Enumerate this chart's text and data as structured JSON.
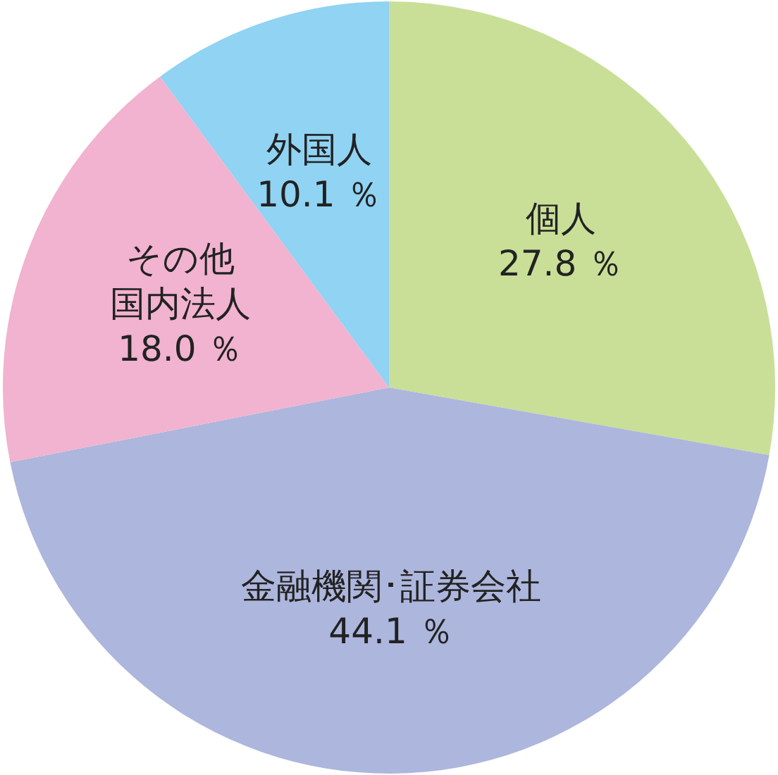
{
  "chart_data": {
    "type": "pie",
    "categories": [
      "個人",
      "金融機関･証券会社",
      "その他国内法人",
      "外国人"
    ],
    "values": [
      27.8,
      44.1,
      18.0,
      10.1
    ],
    "colors": [
      "#c9df98",
      "#adb6dc",
      "#f1b3cf",
      "#90d3f3"
    ],
    "value_labels": [
      "27.8 ％",
      "44.1 ％",
      "18.0 ％",
      "10.1 ％"
    ],
    "legend": false
  }
}
